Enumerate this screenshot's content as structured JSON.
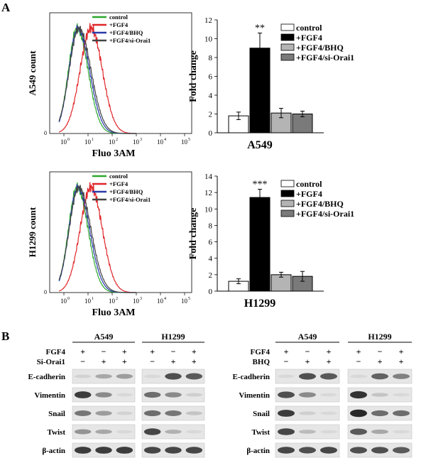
{
  "panel_a": {
    "label": "A",
    "flow": [
      {
        "ylabel": "A549 count",
        "xlabel": "Fluo 3AM",
        "legend": [
          {
            "label": "control",
            "color": "#2ea82e"
          },
          {
            "label": "+FGF4",
            "color": "#e0262a"
          },
          {
            "label": "+FGF4/BHQ",
            "color": "#2a3ba8"
          },
          {
            "label": "+FGF4/si-Orai1",
            "color": "#444444"
          }
        ],
        "yzero": "0",
        "xticks": [
          "10",
          "10",
          "10",
          "10",
          "10",
          "10"
        ],
        "xtick_exps": [
          "0",
          "1",
          "2",
          "3",
          "4",
          "5"
        ]
      },
      {
        "ylabel": "H1299 count",
        "xlabel": "Fluo 3AM",
        "legend": [
          {
            "label": "control",
            "color": "#2ea82e"
          },
          {
            "label": "+FGF4",
            "color": "#e0262a"
          },
          {
            "label": "+FGF4/BHQ",
            "color": "#2a3ba8"
          },
          {
            "label": "+FGF4/si-Orai1",
            "color": "#444444"
          }
        ],
        "yzero": "0",
        "xticks": [
          "10",
          "10",
          "10",
          "10",
          "10",
          "10"
        ],
        "xtick_exps": [
          "0",
          "1",
          "2",
          "3",
          "4",
          "5"
        ]
      }
    ]
  },
  "chart_data": [
    {
      "type": "bar",
      "title": "A549",
      "ylabel": "Fold change",
      "xlabel": "",
      "ylim": [
        0,
        12
      ],
      "yticks": [
        "0",
        "2",
        "4",
        "6",
        "8",
        "10",
        "12"
      ],
      "categories": [
        "control",
        "+FGF4",
        "+FGF4/BHQ",
        "+FGF4/si-Orai1"
      ],
      "values": [
        1.8,
        9.0,
        2.1,
        2.0
      ],
      "errors": [
        0.4,
        1.6,
        0.5,
        0.3
      ],
      "colors": [
        "#ffffff",
        "#000000",
        "#b4b4b4",
        "#7a7a7a"
      ],
      "annotations": [
        {
          "category": "+FGF4",
          "text": "**"
        }
      ],
      "legend": [
        "control",
        "+FGF4",
        "+FGF4/BHQ",
        "+FGF4/si-Orai1"
      ]
    },
    {
      "type": "bar",
      "title": "H1299",
      "ylabel": "Fold change",
      "xlabel": "",
      "ylim": [
        0,
        14
      ],
      "yticks": [
        "0",
        "2",
        "4",
        "6",
        "8",
        "10",
        "12",
        "14"
      ],
      "categories": [
        "control",
        "+FGF4",
        "+FGF4/BHQ",
        "+FGF4/si-Orai1"
      ],
      "values": [
        1.2,
        11.4,
        2.0,
        1.8
      ],
      "errors": [
        0.3,
        1.0,
        0.3,
        0.6
      ],
      "colors": [
        "#ffffff",
        "#000000",
        "#b4b4b4",
        "#7a7a7a"
      ],
      "annotations": [
        {
          "category": "+FGF4",
          "text": "***"
        }
      ],
      "legend": [
        "control",
        "+FGF4",
        "+FGF4/BHQ",
        "+FGF4/si-Orai1"
      ]
    }
  ],
  "panel_b": {
    "label": "B",
    "left": {
      "cell_lines": [
        "A549",
        "H1299"
      ],
      "treatments": [
        {
          "name": "FGF4",
          "values": [
            "+",
            "−",
            "+"
          ]
        },
        {
          "name": "Si-Orai1",
          "values": [
            "−",
            "+",
            "+"
          ]
        }
      ],
      "rows": [
        "E-cadherin",
        "Vimentin",
        "Snail",
        "Twist",
        "β-actin"
      ],
      "intensities": {
        "A549": [
          [
            0.08,
            0.3,
            0.35
          ],
          [
            0.85,
            0.45,
            0.05
          ],
          [
            0.55,
            0.35,
            0.08
          ],
          [
            0.4,
            0.3,
            0.05
          ],
          [
            0.85,
            0.85,
            0.85
          ]
        ],
        "H1299": [
          [
            0.05,
            0.75,
            0.7
          ],
          [
            0.6,
            0.45,
            0.1
          ],
          [
            0.6,
            0.55,
            0.15
          ],
          [
            0.8,
            0.25,
            0.05
          ],
          [
            0.8,
            0.8,
            0.8
          ]
        ]
      }
    },
    "right": {
      "cell_lines": [
        "A549",
        "H1299"
      ],
      "treatments": [
        {
          "name": "FGF4",
          "values": [
            "+",
            "−",
            "+"
          ]
        },
        {
          "name": "BHQ",
          "values": [
            "−",
            "+",
            "+"
          ]
        }
      ],
      "rows": [
        "E-cadherin",
        "Vimentin",
        "Snail",
        "Twist",
        "β-actin"
      ],
      "intensities": {
        "A549": [
          [
            0.05,
            0.75,
            0.7
          ],
          [
            0.75,
            0.45,
            0.05
          ],
          [
            0.85,
            0.1,
            0.05
          ],
          [
            0.8,
            0.2,
            0.05
          ],
          [
            0.8,
            0.75,
            0.8
          ]
        ],
        "H1299": [
          [
            0.05,
            0.65,
            0.5
          ],
          [
            0.9,
            0.15,
            0.05
          ],
          [
            0.95,
            0.6,
            0.6
          ],
          [
            0.7,
            0.3,
            0.05
          ],
          [
            0.75,
            0.75,
            0.7
          ]
        ]
      }
    }
  }
}
